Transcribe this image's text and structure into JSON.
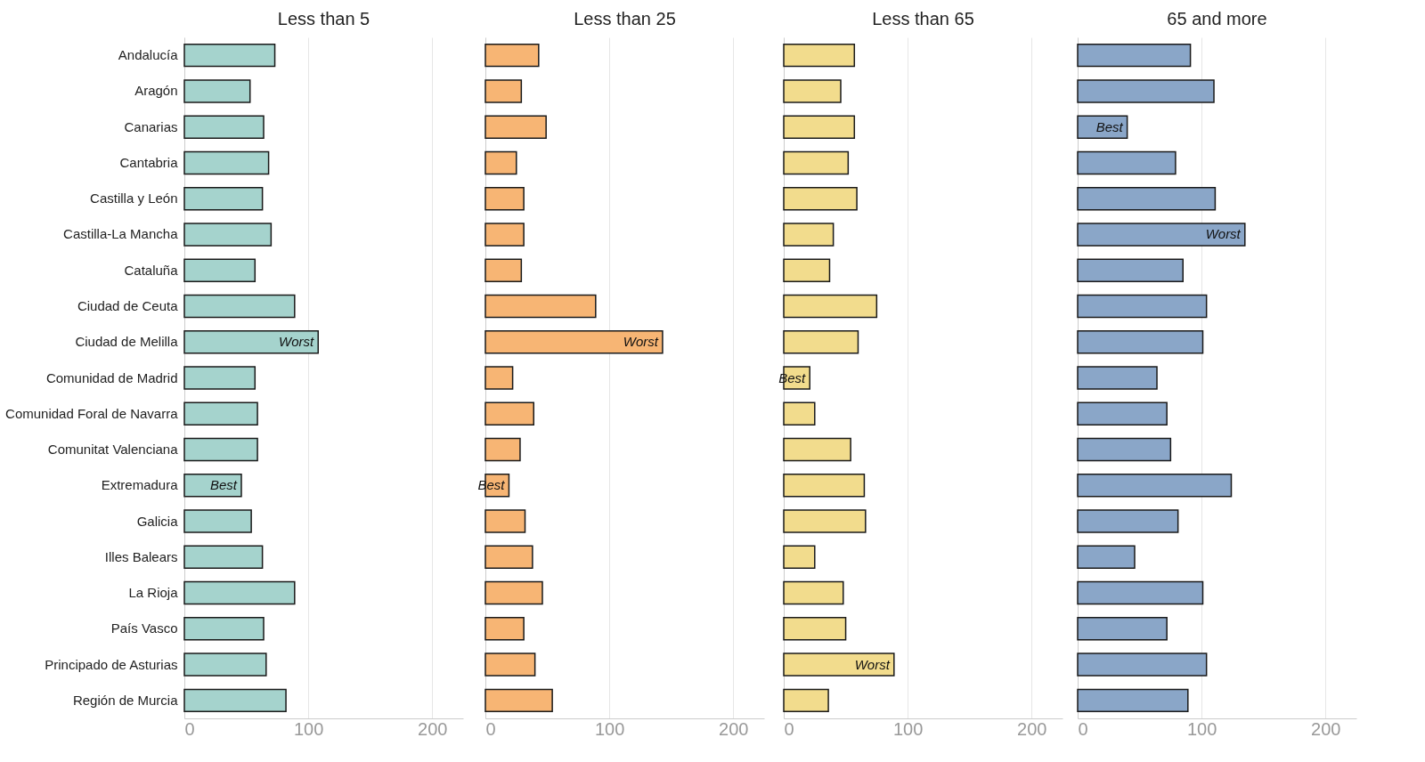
{
  "chart_data": [
    {
      "type": "bar",
      "orientation": "horizontal",
      "title": "Less than 5",
      "grid": "x",
      "color": "#a5d3cd",
      "xlim": [
        0,
        225
      ],
      "xticks": [
        0,
        100,
        200
      ],
      "categories": [
        "Andalucía",
        "Aragón",
        "Canarias",
        "Cantabria",
        "Castilla y León",
        "Castilla-La Mancha",
        "Cataluña",
        "Ciudad de Ceuta",
        "Ciudad de Melilla",
        "Comunidad de Madrid",
        "Comunidad Foral de Navarra",
        "Comunitat Valenciana",
        "Extremadura",
        "Galicia",
        "Illes Balears",
        "La Rioja",
        "País Vasco",
        "Principado de Asturias",
        "Región de Murcia"
      ],
      "values": [
        73,
        53,
        64,
        68,
        63,
        70,
        57,
        89,
        108,
        57,
        59,
        59,
        46,
        54,
        63,
        89,
        64,
        66,
        82
      ],
      "annotations": [
        {
          "text": "Worst",
          "x": 108,
          "y": "Ciudad de Melilla"
        },
        {
          "text": "Best",
          "x": 46,
          "y": "Extremadura"
        }
      ]
    },
    {
      "type": "bar",
      "orientation": "horizontal",
      "title": "Less than 25",
      "grid": "x",
      "color": "#f7b574",
      "xlim": [
        0,
        225
      ],
      "xticks": [
        0,
        100,
        200
      ],
      "tick_labels": "x",
      "categories": [
        "Andalucía",
        "Aragón",
        "Canarias",
        "Cantabria",
        "Castilla y León",
        "Castilla-La Mancha",
        "Cataluña",
        "Ciudad de Ceuta",
        "Ciudad de Melilla",
        "Comunidad de Madrid",
        "Comunidad Foral de Navarra",
        "Comunitat Valenciana",
        "Extremadura",
        "Galicia",
        "Illes Balears",
        "La Rioja",
        "País Vasco",
        "Principado de Asturias",
        "Región de Murcia"
      ],
      "values": [
        43,
        29,
        49,
        25,
        31,
        31,
        29,
        89,
        143,
        22,
        39,
        28,
        19,
        32,
        38,
        46,
        31,
        40,
        54
      ],
      "annotations": [
        {
          "text": "Worst",
          "x": 143,
          "y": "Ciudad de Melilla"
        },
        {
          "text": "Best",
          "x": 19,
          "y": "Extremadura"
        }
      ]
    },
    {
      "type": "bar",
      "orientation": "horizontal",
      "title": "Less than 65",
      "grid": "x",
      "color": "#f2dc8d",
      "xlim": [
        0,
        225
      ],
      "xticks": [
        0,
        100,
        200
      ],
      "tick_labels": "x",
      "categories": [
        "Andalucía",
        "Aragón",
        "Canarias",
        "Cantabria",
        "Castilla y León",
        "Castilla-La Mancha",
        "Cataluña",
        "Ciudad de Ceuta",
        "Ciudad de Melilla",
        "Comunidad de Madrid",
        "Comunidad Foral de Navarra",
        "Comunitat Valenciana",
        "Extremadura",
        "Galicia",
        "Illes Balears",
        "La Rioja",
        "País Vasco",
        "Principado de Asturias",
        "Región de Murcia"
      ],
      "values": [
        57,
        46,
        57,
        52,
        59,
        40,
        37,
        75,
        60,
        21,
        25,
        54,
        65,
        66,
        25,
        48,
        50,
        89,
        36
      ],
      "annotations": [
        {
          "text": "Best",
          "x": 21,
          "y": "Comunidad de Madrid"
        },
        {
          "text": "Worst",
          "x": 89,
          "y": "Principado de Asturias"
        }
      ]
    },
    {
      "type": "bar",
      "orientation": "horizontal",
      "title": "65 and more",
      "grid": "x",
      "color": "#8aa6c8",
      "xlim": [
        0,
        225
      ],
      "xticks": [
        0,
        100,
        200
      ],
      "tick_labels": "x",
      "categories": [
        "Andalucía",
        "Aragón",
        "Canarias",
        "Cantabria",
        "Castilla y León",
        "Castilla-La Mancha",
        "Cataluña",
        "Ciudad de Ceuta",
        "Ciudad de Melilla",
        "Comunidad de Madrid",
        "Comunidad Foral de Navarra",
        "Comunitat Valenciana",
        "Extremadura",
        "Galicia",
        "Illes Balears",
        "La Rioja",
        "País Vasco",
        "Principado de Asturias",
        "Región de Murcia"
      ],
      "values": [
        91,
        110,
        40,
        79,
        111,
        135,
        85,
        104,
        101,
        64,
        72,
        75,
        124,
        81,
        46,
        101,
        72,
        104,
        89
      ],
      "annotations": [
        {
          "text": "Best",
          "x": 40,
          "y": "Canarias"
        },
        {
          "text": "Worst",
          "x": 135,
          "y": "Castilla-La Mancha"
        }
      ]
    }
  ]
}
